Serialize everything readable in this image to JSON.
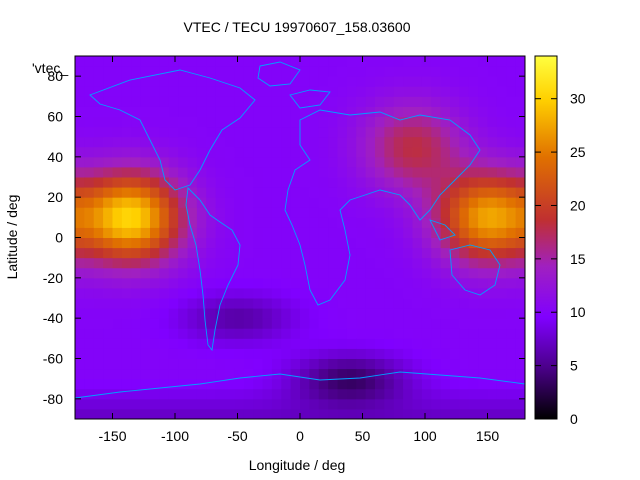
{
  "chart_data": {
    "type": "heatmap",
    "title": "VTEC / TECU 19970607_158.03600",
    "xlabel": "Longitude / deg",
    "ylabel": "Latitude / deg",
    "xlim": [
      -180,
      180
    ],
    "ylim": [
      -90,
      90
    ],
    "x_ticks": [
      -150,
      -100,
      -50,
      0,
      50,
      100,
      150
    ],
    "y_ticks": [
      -80,
      -60,
      -40,
      -20,
      0,
      20,
      40,
      60,
      80
    ],
    "colorbar": {
      "range": [
        0,
        34
      ],
      "ticks": [
        0,
        5,
        10,
        15,
        20,
        25,
        30
      ],
      "palette": [
        "#000000",
        "#4a0088",
        "#8000ff",
        "#a020c0",
        "#c03030",
        "#e07000",
        "#ffd000",
        "#ffff40"
      ]
    },
    "legend_entry": "'vtec_",
    "coastline_color": "#00a0ff",
    "peaks": [
      {
        "lon": -135,
        "lat": 10,
        "value": 30
      },
      {
        "lon": 150,
        "lat": 10,
        "value": 27
      },
      {
        "lon": 90,
        "lat": 45,
        "value": 18
      }
    ],
    "background_level": 10,
    "low_regions": [
      {
        "lon": 40,
        "lat": -70,
        "value": 2
      },
      {
        "lon": -50,
        "lat": -40,
        "value": 5
      }
    ]
  }
}
